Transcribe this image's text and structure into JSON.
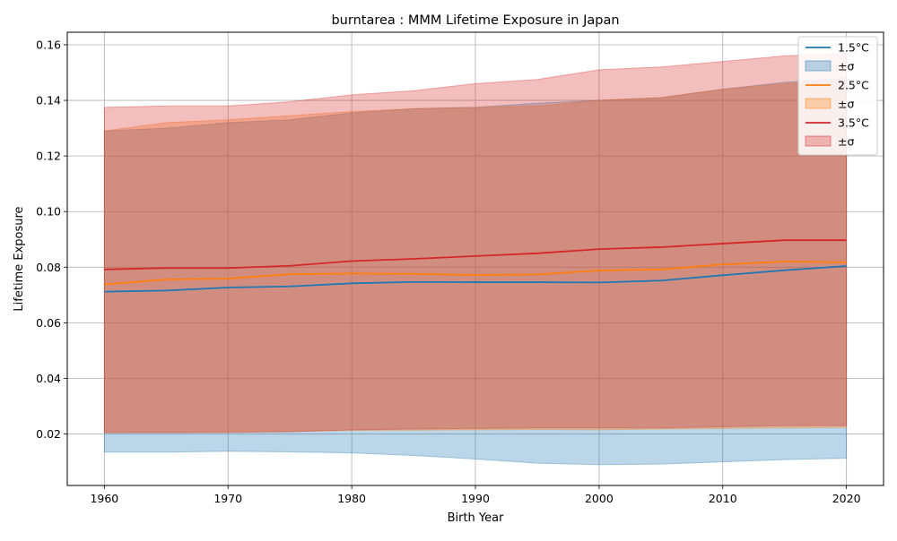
{
  "chart_data": {
    "type": "area",
    "title": "burntarea : MMM Lifetime Exposure in Japan",
    "xlabel": "Birth Year",
    "ylabel": "Lifetime Exposure",
    "xlim": [
      1957,
      2023
    ],
    "ylim": [
      0.0015,
      0.1645
    ],
    "xticks": [
      1960,
      1970,
      1980,
      1990,
      2000,
      2010,
      2020
    ],
    "xtick_labels": [
      "1960",
      "1970",
      "1980",
      "1990",
      "2000",
      "2010",
      "2020"
    ],
    "yticks": [
      0.02,
      0.04,
      0.06,
      0.08,
      0.1,
      0.12,
      0.14,
      0.16
    ],
    "ytick_labels": [
      "0.02",
      "0.04",
      "0.06",
      "0.08",
      "0.10",
      "0.12",
      "0.14",
      "0.16"
    ],
    "grid": true,
    "legend_position": "top-right",
    "x": [
      1960,
      1965,
      1970,
      1975,
      1980,
      1985,
      1990,
      1995,
      2000,
      2005,
      2010,
      2015,
      2020
    ],
    "series": [
      {
        "name": "1.5°C",
        "band_label": "±σ",
        "color": "#1f77b4",
        "band_color": "#1f77b4",
        "values": [
          0.0712,
          0.0716,
          0.0727,
          0.0731,
          0.0742,
          0.0747,
          0.0746,
          0.0746,
          0.0745,
          0.0752,
          0.0771,
          0.0789,
          0.0804
        ],
        "lower": [
          0.0135,
          0.0135,
          0.0138,
          0.0136,
          0.0132,
          0.0123,
          0.011,
          0.0095,
          0.009,
          0.0092,
          0.01,
          0.0108,
          0.0113
        ],
        "upper": [
          0.129,
          0.13,
          0.132,
          0.133,
          0.1355,
          0.137,
          0.1375,
          0.139,
          0.14,
          0.141,
          0.144,
          0.1465,
          0.148
        ]
      },
      {
        "name": "2.5°C",
        "band_label": "±σ",
        "color": "#ff7f0e",
        "band_color": "#ff7f0e",
        "values": [
          0.0738,
          0.0756,
          0.0759,
          0.0775,
          0.0777,
          0.0776,
          0.0772,
          0.0774,
          0.0788,
          0.0792,
          0.081,
          0.082,
          0.0818
        ],
        "lower": [
          0.0205,
          0.0206,
          0.0207,
          0.021,
          0.0213,
          0.0214,
          0.0215,
          0.0216,
          0.0215,
          0.0218,
          0.022,
          0.0222,
          0.0223
        ],
        "upper": [
          0.129,
          0.132,
          0.133,
          0.1345,
          0.136,
          0.137,
          0.1375,
          0.138,
          0.14,
          0.141,
          0.144,
          0.146,
          0.147
        ]
      },
      {
        "name": "3.5°C",
        "band_label": "±σ",
        "color": "#d62728",
        "band_color": "#d62728",
        "values": [
          0.0792,
          0.0797,
          0.0797,
          0.0805,
          0.0822,
          0.083,
          0.084,
          0.085,
          0.0865,
          0.0872,
          0.0885,
          0.0897,
          0.0897
        ],
        "lower": [
          0.0205,
          0.0205,
          0.0206,
          0.0208,
          0.0215,
          0.0218,
          0.022,
          0.0222,
          0.0222,
          0.0222,
          0.0226,
          0.023,
          0.023
        ],
        "upper": [
          0.1375,
          0.138,
          0.138,
          0.1395,
          0.142,
          0.1435,
          0.146,
          0.1475,
          0.151,
          0.152,
          0.154,
          0.156,
          0.157
        ]
      }
    ]
  }
}
